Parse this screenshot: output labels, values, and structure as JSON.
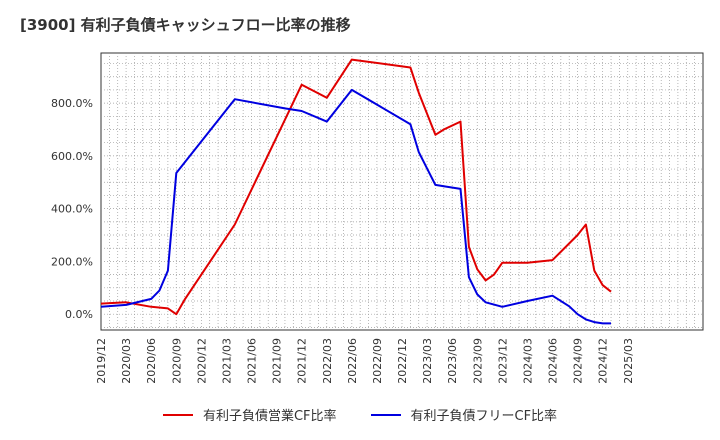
{
  "chart_data": {
    "type": "line",
    "title": "[3900]  有利子負債キャッシュフロー比率の推移",
    "xlabel": "",
    "ylabel": "",
    "ylim": [
      -60,
      990
    ],
    "yticks": [
      0,
      200,
      400,
      600,
      800
    ],
    "ytick_labels": [
      "0.0%",
      "200.0%",
      "400.0%",
      "600.0%",
      "800.0%"
    ],
    "xlim": [
      0,
      72
    ],
    "xtick_labels": [
      "2019/12",
      "2020/03",
      "2020/06",
      "2020/09",
      "2020/12",
      "2021/03",
      "2021/06",
      "2021/09",
      "2021/12",
      "2022/03",
      "2022/06",
      "2022/09",
      "2022/12",
      "2023/03",
      "2023/06",
      "2023/09",
      "2023/12",
      "2024/03",
      "2024/06",
      "2024/09",
      "2024/12",
      "2025/03"
    ],
    "grid": true,
    "legend": "bottom",
    "series": [
      {
        "name": "有利子負債営業CF比率",
        "color": "#e00000",
        "x": [
          0,
          3,
          6,
          8,
          9,
          10,
          16,
          24,
          27,
          30,
          37,
          38,
          40,
          41,
          43,
          44,
          45,
          46,
          47,
          48,
          51,
          54,
          57,
          58,
          59,
          60,
          61,
          62,
          63,
          64
        ],
        "values": [
          40,
          45,
          28,
          22,
          0,
          55,
          340,
          870,
          820,
          965,
          935,
          840,
          680,
          700,
          730,
          255,
          170,
          128,
          150,
          195,
          195,
          205,
          300,
          340,
          165,
          110,
          85,
          null,
          null,
          null
        ]
      },
      {
        "name": "有利子負債フリーCF比率",
        "color": "#0000e0",
        "x": [
          0,
          3,
          6,
          7,
          8,
          9,
          16,
          22,
          24,
          27,
          30,
          37,
          38,
          40,
          41,
          43,
          44,
          45,
          46,
          48,
          51,
          54,
          56,
          57,
          58,
          59,
          60,
          61,
          62,
          63,
          64
        ],
        "values": [
          28,
          35,
          58,
          90,
          165,
          535,
          815,
          780,
          770,
          730,
          850,
          720,
          615,
          490,
          485,
          475,
          140,
          75,
          45,
          28,
          50,
          70,
          30,
          0,
          -20,
          -30,
          -35,
          -35,
          null,
          null,
          null
        ]
      }
    ]
  }
}
